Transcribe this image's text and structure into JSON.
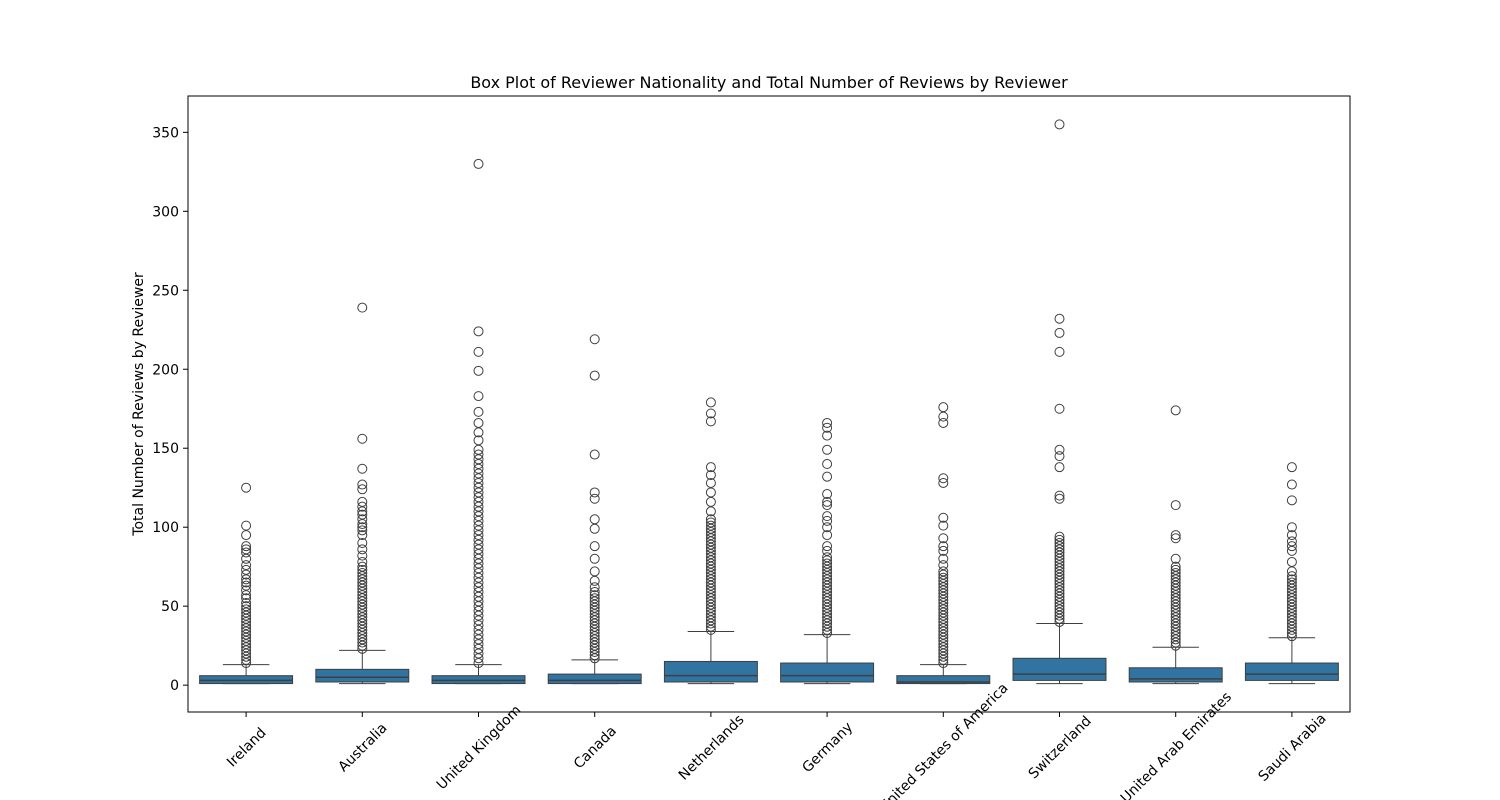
{
  "chart_data": {
    "type": "box",
    "title": "Box Plot of Reviewer Nationality and Total Number of Reviews by Reviewer",
    "ylabel": "Total Number of Reviews by Reviewer",
    "categories": [
      "Ireland",
      "Australia",
      "United Kingdom",
      "Canada",
      "Netherlands",
      "Germany",
      "United States of America",
      "Switzerland",
      "United Arab Emirates",
      "Saudi Arabia"
    ],
    "color": "#3274a1",
    "ylim": [
      -17,
      373
    ],
    "yticks": [
      0,
      50,
      100,
      150,
      200,
      250,
      300,
      350
    ],
    "boxes": [
      {
        "whislo": 1,
        "q1": 1,
        "med": 3,
        "q3": 6,
        "whishi": 13,
        "fliers": [
          14,
          16,
          18,
          20,
          22,
          24,
          26,
          28,
          30,
          32,
          34,
          36,
          38,
          40,
          42,
          44,
          46,
          48,
          50,
          52,
          55,
          57,
          60,
          63,
          65,
          67,
          70,
          73,
          76,
          80,
          84,
          86,
          88,
          95,
          101,
          125
        ]
      },
      {
        "whislo": 1,
        "q1": 2,
        "med": 5,
        "q3": 10,
        "whishi": 22,
        "fliers": [
          23,
          25,
          27,
          29,
          31,
          33,
          35,
          37,
          39,
          41,
          43,
          45,
          47,
          49,
          51,
          53,
          55,
          57,
          59,
          61,
          63,
          65,
          67,
          69,
          71,
          73,
          75,
          78,
          82,
          86,
          90,
          95,
          98,
          100,
          102,
          105,
          108,
          110,
          113,
          116,
          124,
          127,
          137,
          156,
          239
        ]
      },
      {
        "whislo": 1,
        "q1": 1,
        "med": 3,
        "q3": 6,
        "whishi": 13,
        "fliers": [
          14,
          17,
          20,
          23,
          26,
          29,
          32,
          35,
          38,
          41,
          44,
          47,
          50,
          53,
          56,
          59,
          62,
          65,
          68,
          71,
          74,
          77,
          80,
          83,
          86,
          89,
          92,
          95,
          98,
          101,
          104,
          107,
          110,
          113,
          116,
          119,
          122,
          125,
          128,
          131,
          134,
          137,
          140,
          143,
          146,
          149,
          155,
          160,
          166,
          173,
          183,
          199,
          211,
          224,
          330
        ]
      },
      {
        "whislo": 1,
        "q1": 1,
        "med": 3,
        "q3": 7,
        "whishi": 16,
        "fliers": [
          17,
          19,
          21,
          23,
          25,
          27,
          29,
          31,
          33,
          35,
          37,
          39,
          41,
          43,
          45,
          47,
          49,
          51,
          53,
          55,
          57,
          59,
          62,
          66,
          72,
          80,
          88,
          99,
          105,
          118,
          122,
          146,
          196,
          219
        ]
      },
      {
        "whislo": 1,
        "q1": 2,
        "med": 6,
        "q3": 15,
        "whishi": 34,
        "fliers": [
          35,
          37,
          39,
          41,
          43,
          45,
          47,
          49,
          51,
          53,
          55,
          57,
          59,
          61,
          63,
          65,
          67,
          69,
          71,
          73,
          75,
          77,
          79,
          81,
          83,
          85,
          87,
          89,
          91,
          93,
          95,
          97,
          99,
          101,
          103,
          105,
          110,
          116,
          122,
          128,
          133,
          138,
          167,
          172,
          179
        ]
      },
      {
        "whislo": 1,
        "q1": 2,
        "med": 6,
        "q3": 14,
        "whishi": 32,
        "fliers": [
          33,
          35,
          37,
          39,
          41,
          43,
          45,
          47,
          49,
          51,
          53,
          55,
          57,
          59,
          61,
          63,
          65,
          67,
          69,
          71,
          73,
          75,
          77,
          79,
          81,
          85,
          88,
          95,
          100,
          104,
          107,
          114,
          116,
          121,
          132,
          140,
          149,
          158,
          163,
          166
        ]
      },
      {
        "whislo": 1,
        "q1": 1,
        "med": 2,
        "q3": 6,
        "whishi": 13,
        "fliers": [
          14,
          16,
          18,
          20,
          22,
          24,
          26,
          28,
          30,
          32,
          34,
          36,
          38,
          40,
          42,
          44,
          46,
          48,
          50,
          52,
          54,
          56,
          58,
          60,
          62,
          64,
          66,
          68,
          70,
          72,
          76,
          80,
          85,
          88,
          93,
          101,
          106,
          128,
          131,
          166,
          170,
          176
        ]
      },
      {
        "whislo": 1,
        "q1": 3,
        "med": 7,
        "q3": 17,
        "whishi": 39,
        "fliers": [
          40,
          42,
          44,
          46,
          48,
          50,
          52,
          54,
          56,
          58,
          60,
          62,
          64,
          66,
          68,
          70,
          72,
          74,
          76,
          78,
          80,
          82,
          84,
          86,
          88,
          90,
          92,
          94,
          118,
          120,
          138,
          145,
          149,
          175,
          211,
          223,
          232,
          355
        ]
      },
      {
        "whislo": 1,
        "q1": 2,
        "med": 4,
        "q3": 11,
        "whishi": 24,
        "fliers": [
          25,
          27,
          29,
          31,
          33,
          35,
          37,
          39,
          41,
          43,
          45,
          47,
          49,
          51,
          53,
          55,
          57,
          59,
          61,
          63,
          65,
          67,
          69,
          71,
          73,
          75,
          80,
          93,
          95,
          114,
          174
        ]
      },
      {
        "whislo": 1,
        "q1": 3,
        "med": 7,
        "q3": 14,
        "whishi": 30,
        "fliers": [
          31,
          33,
          35,
          37,
          39,
          41,
          43,
          45,
          47,
          49,
          51,
          53,
          55,
          57,
          59,
          61,
          63,
          65,
          67,
          69,
          72,
          78,
          85,
          88,
          91,
          95,
          100,
          117,
          127,
          138
        ]
      }
    ]
  }
}
